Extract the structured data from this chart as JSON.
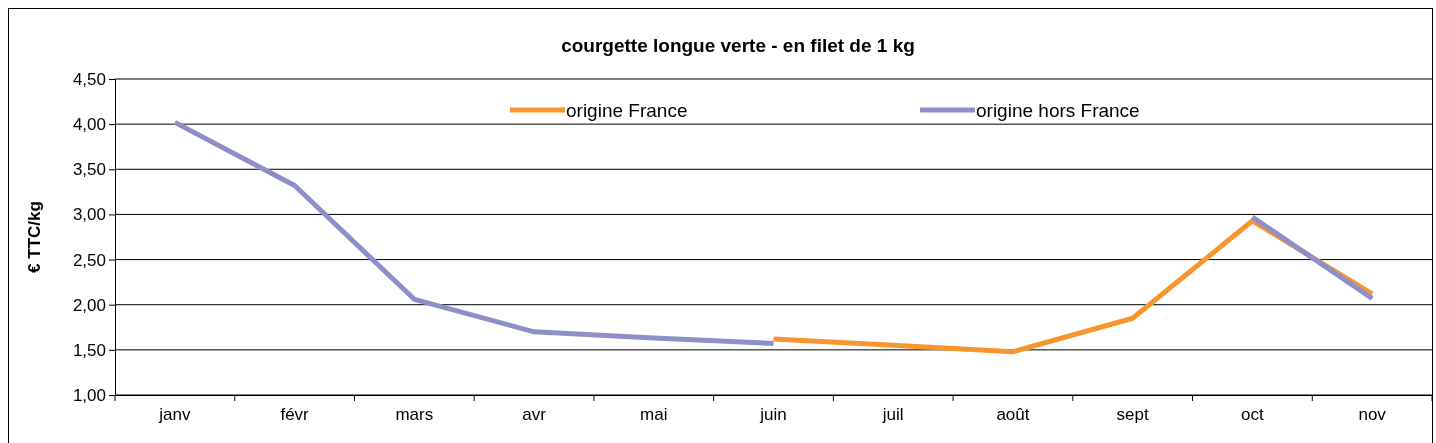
{
  "chart_data": {
    "type": "line",
    "title": "courgette longue verte - en filet de 1 kg",
    "ylabel": "€ TTC/kg",
    "categories": [
      "janv",
      "févr",
      "mars",
      "avr",
      "mai",
      "juin",
      "juil",
      "août",
      "sept",
      "oct",
      "nov"
    ],
    "series": [
      {
        "name": "origine France",
        "color": "#f7962f",
        "values": [
          null,
          null,
          null,
          null,
          null,
          1.62,
          1.55,
          1.48,
          1.85,
          2.93,
          2.12
        ]
      },
      {
        "name": "origine hors France",
        "color": "#8e8ec8",
        "values": [
          4.02,
          3.32,
          2.06,
          1.7,
          1.63,
          1.57,
          null,
          null,
          null,
          2.97,
          2.07
        ]
      }
    ],
    "ylim": [
      1,
      4.5
    ],
    "yticks": [
      {
        "value": 1,
        "label": "1,00"
      },
      {
        "value": 1.5,
        "label": "1,50"
      },
      {
        "value": 2,
        "label": "2,00"
      },
      {
        "value": 2.5,
        "label": "2,50"
      },
      {
        "value": 3,
        "label": "3,00"
      },
      {
        "value": 3.5,
        "label": "3,50"
      },
      {
        "value": 4,
        "label": "4,00"
      },
      {
        "value": 4.5,
        "label": "4,50"
      }
    ],
    "grid": "y",
    "legend": "top",
    "marker": "none",
    "line_style": "solid"
  }
}
